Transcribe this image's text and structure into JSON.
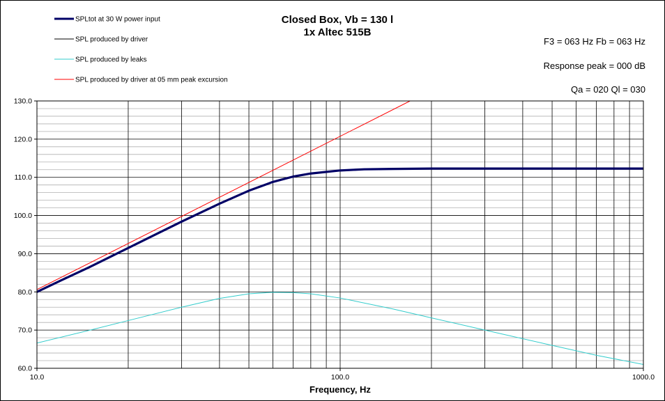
{
  "chart_data": {
    "type": "line",
    "title": "Closed Box, Vb = 130 l",
    "subtitle": "1x Altec 515B",
    "xlabel": "Frequency, Hz",
    "ylabel": "",
    "x_scale": "log",
    "xlim": [
      10,
      1000
    ],
    "ylim": [
      60,
      130
    ],
    "x_tick_labels": [
      "10.0",
      "100.0",
      "1000.0"
    ],
    "y_tick_labels": [
      "60.0",
      "70.0",
      "80.0",
      "90.0",
      "100.0",
      "110.0",
      "120.0",
      "130.0"
    ],
    "grid": true,
    "legend_position": "top-left",
    "info_lines": [
      "F3 = 063 Hz  Fb = 063 Hz",
      "Response  peak = 000 dB",
      "Qa = 020  Ql = 030"
    ],
    "series": [
      {
        "name": "SPLtot at 30 W power input",
        "color": "#000066",
        "x": [
          10,
          12,
          15,
          20,
          25,
          30,
          40,
          50,
          60,
          70,
          80,
          100,
          120,
          150,
          200,
          300,
          500,
          700,
          1000
        ],
        "y": [
          80.0,
          83.0,
          86.6,
          91.5,
          95.3,
          98.4,
          103.1,
          106.5,
          108.8,
          110.2,
          111.0,
          111.8,
          112.1,
          112.2,
          112.3,
          112.3,
          112.3,
          112.3,
          112.3
        ]
      },
      {
        "name": "SPL produced by driver",
        "color": "#000000",
        "x": [
          10,
          12,
          15,
          20,
          25,
          30,
          40,
          50,
          60,
          70,
          80,
          100,
          120,
          150,
          200,
          300,
          500,
          700,
          1000
        ],
        "y": [
          80.0,
          83.0,
          86.6,
          91.5,
          95.3,
          98.4,
          103.1,
          106.5,
          108.8,
          110.2,
          111.0,
          111.8,
          112.1,
          112.2,
          112.3,
          112.3,
          112.3,
          112.3,
          112.3
        ]
      },
      {
        "name": "SPL produced by leaks",
        "color": "#33cccc",
        "x": [
          10,
          15,
          20,
          30,
          40,
          50,
          60,
          70,
          80,
          100,
          150,
          200,
          300,
          500,
          700,
          1000
        ],
        "y": [
          66.6,
          70.0,
          72.5,
          76.0,
          78.3,
          79.5,
          79.9,
          79.8,
          79.5,
          78.4,
          75.5,
          73.2,
          70.0,
          66.0,
          63.4,
          61.0
        ]
      },
      {
        "name": "SPL produced by driver at 05 mm peak excursion",
        "color": "#ff0000",
        "x": [
          10,
          170
        ],
        "y": [
          80.6,
          130.0
        ]
      }
    ]
  }
}
